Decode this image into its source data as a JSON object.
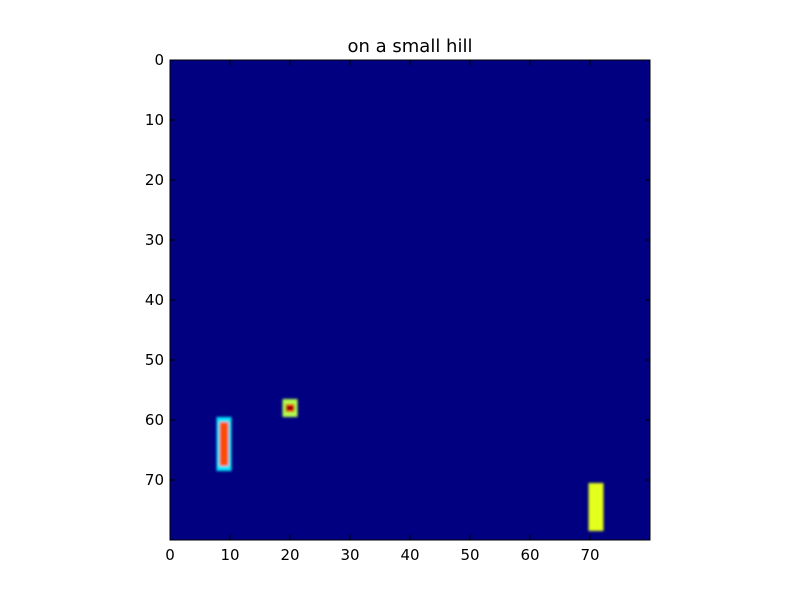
{
  "chart_data": {
    "type": "heatmap",
    "title": "on a small hill",
    "xlabel": "",
    "ylabel": "",
    "xlim": [
      0,
      80
    ],
    "ylim": [
      80,
      0
    ],
    "x_ticks": [
      0,
      10,
      20,
      30,
      40,
      50,
      60,
      70
    ],
    "y_ticks": [
      0,
      10,
      20,
      30,
      40,
      50,
      60,
      70
    ],
    "grid": false,
    "background_color": "#000080",
    "colormap": "jet",
    "blobs": [
      {
        "x": 9,
        "y_start": 60,
        "y_end": 68,
        "value": 0.8,
        "edge_value": 0.35
      },
      {
        "x": 20,
        "y_start": 57,
        "y_end": 59,
        "value": 0.9,
        "edge_value": 0.55
      },
      {
        "x": 71,
        "y_start": 71,
        "y_end": 78,
        "value": 0.6,
        "edge_value": 0.6
      }
    ]
  }
}
